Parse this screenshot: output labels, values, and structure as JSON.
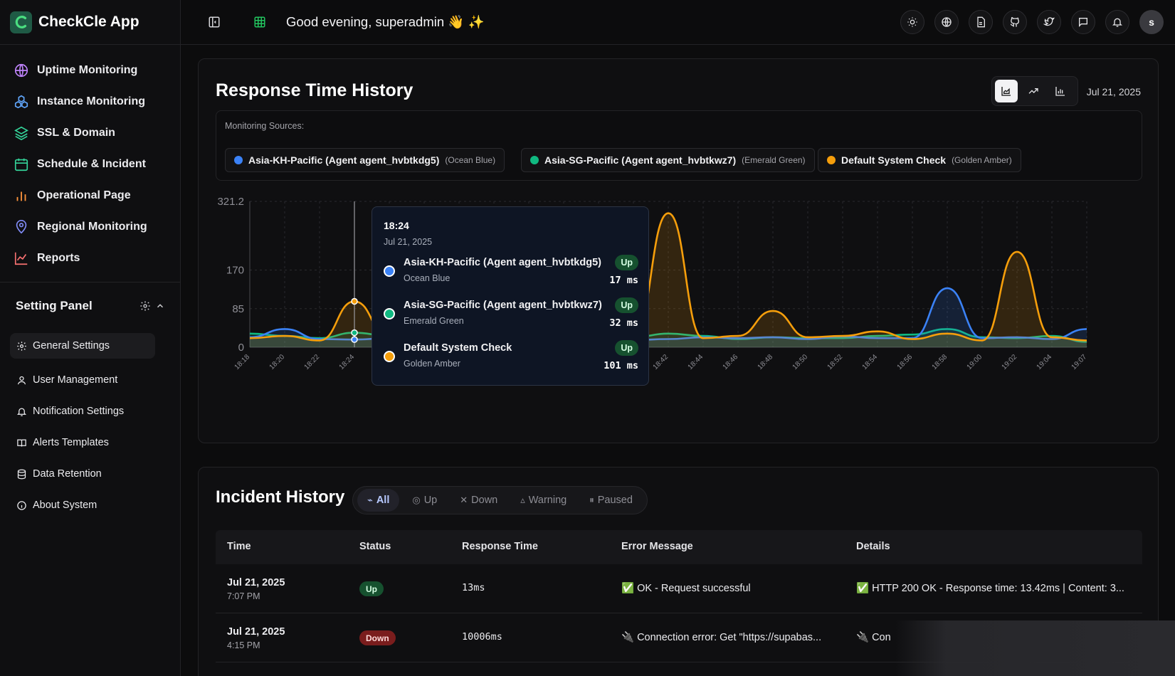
{
  "app": {
    "name": "CheckCle App",
    "greeting": "Good evening, superadmin 👋 ✨",
    "avatar_letter": "s"
  },
  "sidebar": {
    "items": [
      {
        "label": "Uptime Monitoring",
        "icon": "globe-icon",
        "color": "#c084fc"
      },
      {
        "label": "Instance Monitoring",
        "icon": "boxes-icon",
        "color": "#60a5fa"
      },
      {
        "label": "SSL & Domain",
        "icon": "layers-icon",
        "color": "#34d399"
      },
      {
        "label": "Schedule & Incident",
        "icon": "calendar-icon",
        "color": "#34d399"
      },
      {
        "label": "Operational Page",
        "icon": "bar-chart-icon",
        "color": "#fb923c"
      },
      {
        "label": "Regional Monitoring",
        "icon": "map-pin-icon",
        "color": "#818cf8"
      },
      {
        "label": "Reports",
        "icon": "line-chart-icon",
        "color": "#f87171"
      }
    ],
    "setting_panel": {
      "title": "Setting Panel",
      "items": [
        {
          "label": "General Settings",
          "icon": "gear-icon",
          "active": true
        },
        {
          "label": "User Management",
          "icon": "user-icon"
        },
        {
          "label": "Notification Settings",
          "icon": "bell-icon"
        },
        {
          "label": "Alerts Templates",
          "icon": "book-icon"
        },
        {
          "label": "Data Retention",
          "icon": "database-icon"
        },
        {
          "label": "About System",
          "icon": "info-icon"
        }
      ]
    }
  },
  "topbar": {
    "icons": [
      "sun-icon",
      "globe-icon",
      "document-icon",
      "github-icon",
      "twitter-icon",
      "message-icon",
      "bell-icon"
    ]
  },
  "response_time": {
    "title": "Response Time History",
    "date": "Jul 21, 2025",
    "sources_label": "Monitoring Sources:",
    "sources": [
      {
        "name": "Asia-KH-Pacific (Agent agent_hvbtkdg5)",
        "color_name": "(Ocean Blue)",
        "color": "#3b82f6"
      },
      {
        "name": "Asia-SG-Pacific (Agent agent_hvbtkwz7)",
        "color_name": "(Emerald Green)",
        "color": "#10b981"
      },
      {
        "name": "Default System Check",
        "color_name": "(Golden Amber)",
        "color": "#f59e0b"
      }
    ],
    "tooltip": {
      "time": "18:24",
      "date": "Jul 21, 2025",
      "rows": [
        {
          "name": "Asia-KH-Pacific (Agent agent_hvbtkdg5)",
          "color_name": "Ocean Blue",
          "status": "Up",
          "value": "17 ms"
        },
        {
          "name": "Asia-SG-Pacific (Agent agent_hvbtkwz7)",
          "color_name": "Emerald Green",
          "status": "Up",
          "value": "32 ms"
        },
        {
          "name": "Default System Check",
          "color_name": "Golden Amber",
          "status": "Up",
          "value": "101 ms"
        }
      ]
    }
  },
  "chart_data": {
    "type": "area",
    "ylim": [
      0,
      321.2
    ],
    "y_ticks": [
      "0",
      "85",
      "170",
      "321.2"
    ],
    "x": [
      "18:18",
      "18:20",
      "18:22",
      "18:24",
      "18:26",
      "18:28",
      "18:30",
      "18:32",
      "18:34",
      "18:36",
      "18:38",
      "18:40",
      "18:42",
      "18:44",
      "18:46",
      "18:48",
      "18:50",
      "18:52",
      "18:54",
      "18:56",
      "18:58",
      "19:00",
      "19:02",
      "19:04",
      "19:07"
    ],
    "series": [
      {
        "name": "Asia-KH-Pacific (Agent agent_hvbtkdg5)",
        "color": "#3b82f6",
        "values": [
          22,
          40,
          18,
          17,
          20,
          22,
          20,
          21,
          22,
          20,
          18,
          16,
          18,
          22,
          20,
          22,
          18,
          24,
          20,
          20,
          130,
          20,
          22,
          18,
          40
        ]
      },
      {
        "name": "Asia-SG-Pacific (Agent agent_hvbtkwz7)",
        "color": "#10b981",
        "values": [
          30,
          25,
          20,
          32,
          25,
          20,
          22,
          25,
          22,
          24,
          18,
          22,
          30,
          25,
          18,
          22,
          20,
          20,
          25,
          28,
          40,
          22,
          20,
          25,
          12
        ]
      },
      {
        "name": "Default System Check",
        "color": "#f59e0b",
        "values": [
          20,
          25,
          15,
          101,
          20,
          22,
          20,
          18,
          22,
          20,
          25,
          20,
          295,
          20,
          25,
          80,
          22,
          25,
          35,
          18,
          30,
          15,
          210,
          22,
          15
        ]
      }
    ]
  },
  "incidents": {
    "title": "Incident History",
    "filters": [
      {
        "label": "All",
        "icon": "activity-icon",
        "glyph": "⌁",
        "active": true
      },
      {
        "label": "Up",
        "icon": "check-circle-icon",
        "glyph": "◎"
      },
      {
        "label": "Down",
        "icon": "x-icon",
        "glyph": "✕"
      },
      {
        "label": "Warning",
        "icon": "warning-icon",
        "glyph": "▵"
      },
      {
        "label": "Paused",
        "icon": "pause-icon",
        "glyph": "⏸"
      }
    ],
    "columns": [
      "Time",
      "Status",
      "Response Time",
      "Error Message",
      "Details"
    ],
    "rows": [
      {
        "date": "Jul 21, 2025",
        "time": "7:07 PM",
        "status": "Up",
        "response": "13ms",
        "error": "✅ OK - Request successful",
        "details": "✅ HTTP 200 OK - Response time: 13.42ms | Content: 3..."
      },
      {
        "date": "Jul 21, 2025",
        "time": "4:15 PM",
        "status": "Down",
        "response": "10006ms",
        "error": "🔌 Connection error: Get \"https://supabas...",
        "details": "🔌 Con"
      }
    ]
  }
}
